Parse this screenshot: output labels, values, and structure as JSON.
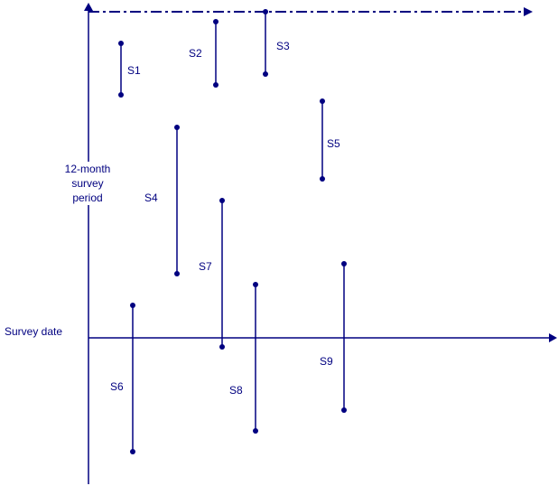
{
  "colors": {
    "line": "#000080",
    "background": "#ffffff"
  },
  "y_axis_label": [
    "12-month",
    "survey",
    "period"
  ],
  "x_axis_label": "Survey date",
  "surveys": [
    {
      "label": "S1"
    },
    {
      "label": "S2"
    },
    {
      "label": "S3"
    },
    {
      "label": "S4"
    },
    {
      "label": "S5"
    },
    {
      "label": "S6"
    },
    {
      "label": "S7"
    },
    {
      "label": "S8"
    },
    {
      "label": "S9"
    }
  ]
}
